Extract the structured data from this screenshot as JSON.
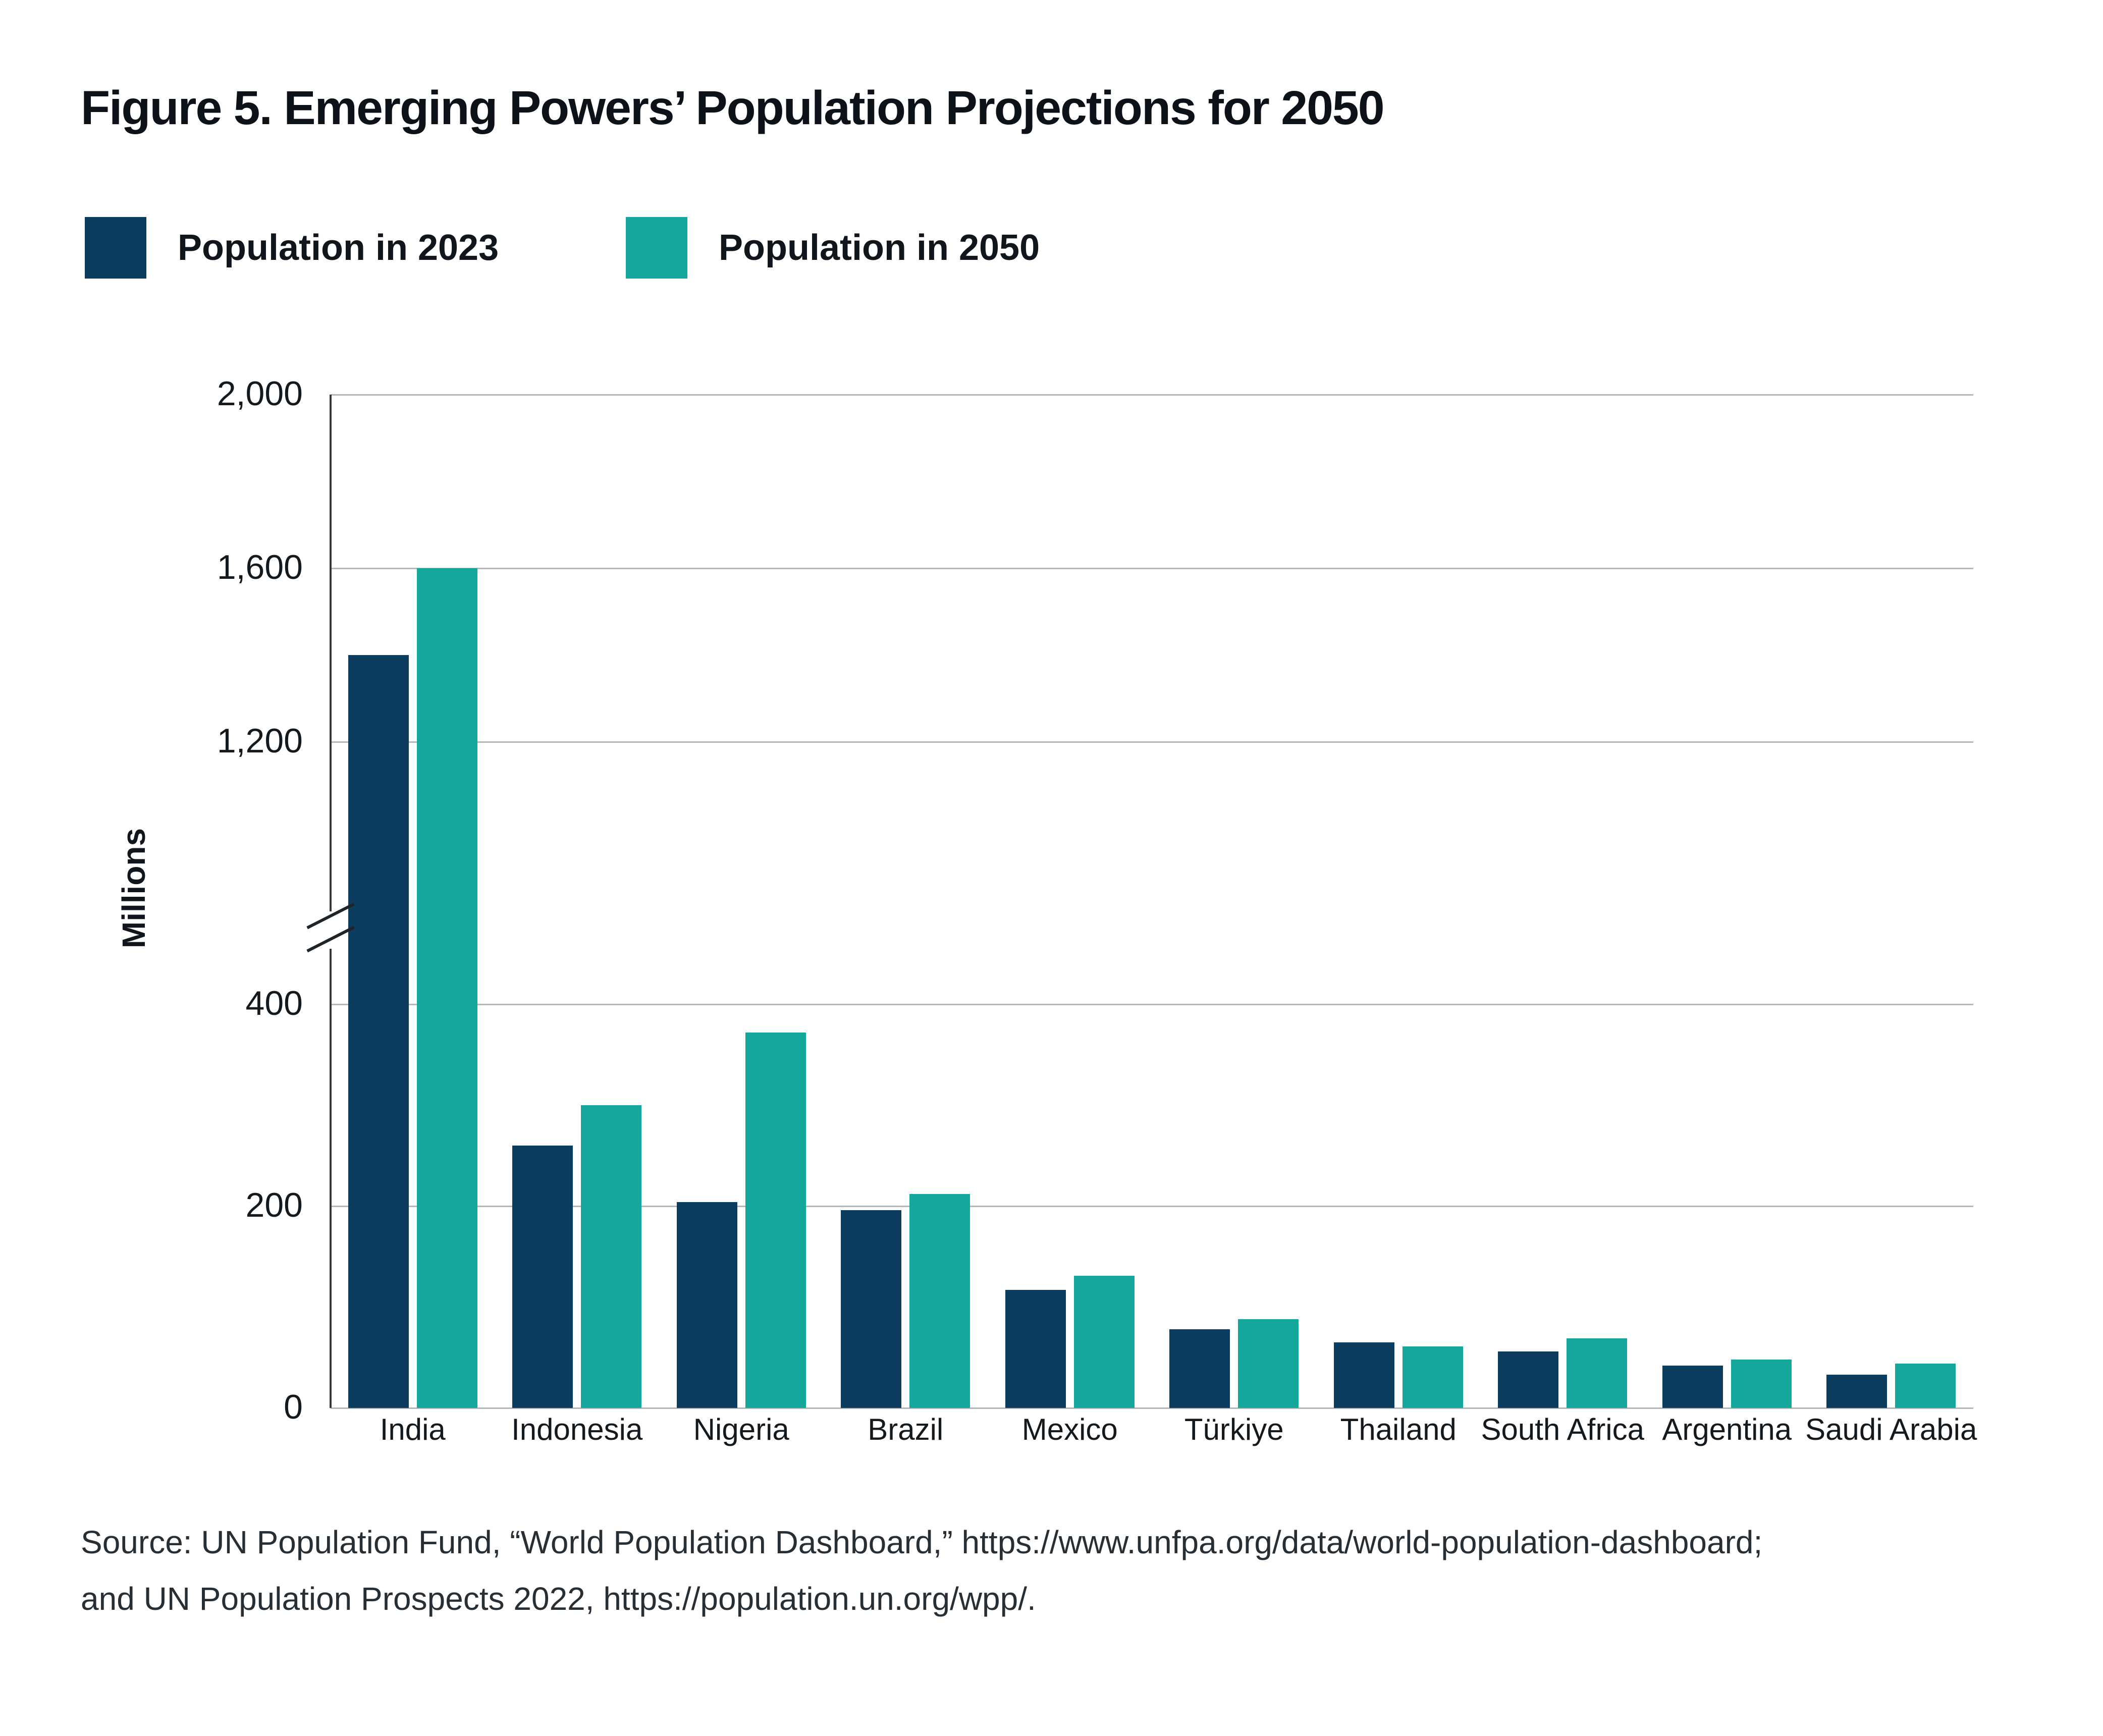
{
  "title": "Figure 5. Emerging Powers’ Population Projections for 2050",
  "legend": {
    "items": [
      {
        "label": "Population in 2023",
        "color": "#0c3c5e"
      },
      {
        "label": "Population in 2050",
        "color": "#16a79c"
      }
    ]
  },
  "chart_data": {
    "type": "bar",
    "title": "Figure 5. Emerging Powers’ Population Projections for 2050",
    "xlabel": "",
    "ylabel": "Millions",
    "unit": "millions of people",
    "grid": true,
    "legend_position": "top-left",
    "categories": [
      "India",
      "Indonesia",
      "Nigeria",
      "Brazil",
      "Mexico",
      "Türkiye",
      "Thailand",
      "South Africa",
      "Argentina",
      "Saudi Arabia"
    ],
    "series": [
      {
        "name": "Population in 2023",
        "color": "#0c3c5e",
        "values": [
          1400,
          260,
          204,
          196,
          117,
          78,
          65,
          56,
          42,
          33
        ]
      },
      {
        "name": "Population in 2050",
        "color": "#16a79c",
        "values": [
          1600,
          300,
          372,
          212,
          131,
          88,
          61,
          69,
          48,
          44
        ]
      }
    ],
    "y_axis": {
      "ticks": [
        0,
        200,
        400,
        1200,
        1600,
        2000
      ],
      "tick_labels": [
        "0",
        "200",
        "400",
        "1,200",
        "1,600",
        "2,000"
      ],
      "axis_break_between": [
        400,
        1200
      ],
      "ylim": [
        0,
        2000
      ]
    }
  },
  "source": {
    "lines": [
      "Source: UN Population Fund, “World Population Dashboard,” https://www.unfpa.org/data/world-population-dashboard;",
      "and UN Population Prospects 2022,  https://population.un.org/wpp/."
    ]
  }
}
